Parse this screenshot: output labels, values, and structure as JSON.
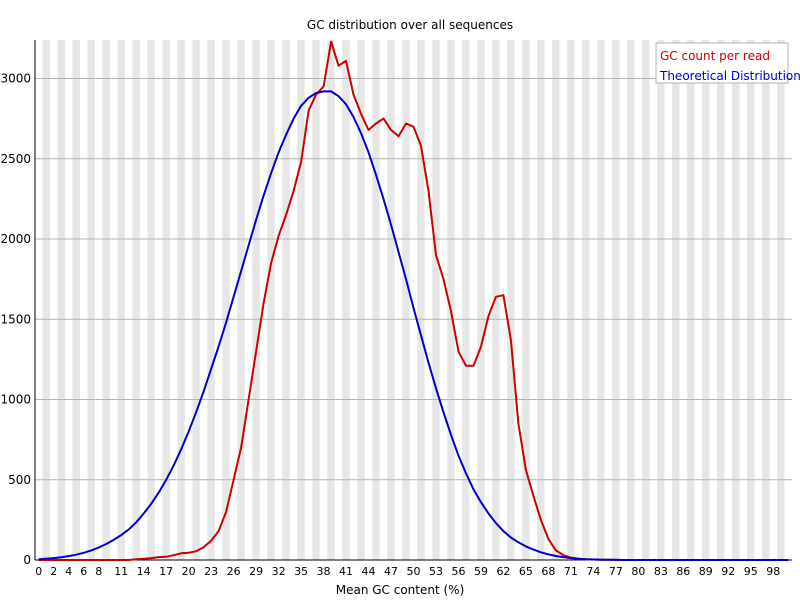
{
  "chart_data": {
    "type": "line",
    "title": "GC distribution over all sequences",
    "xlabel": "Mean GC content (%)",
    "ylabel": "",
    "x_ticks": [
      0,
      2,
      4,
      6,
      8,
      11,
      14,
      17,
      20,
      23,
      26,
      29,
      32,
      35,
      38,
      41,
      44,
      47,
      50,
      53,
      56,
      59,
      62,
      65,
      68,
      71,
      74,
      77,
      80,
      83,
      86,
      89,
      92,
      95,
      98
    ],
    "y_ticks": [
      0,
      500,
      1000,
      1500,
      2000,
      2500,
      3000
    ],
    "xlim": [
      0,
      101
    ],
    "ylim": [
      0,
      3240
    ],
    "grid": "alternating vertical bands, horizontal gridlines",
    "legend": {
      "placement": "top-right",
      "entries": [
        {
          "label": "GC count per read",
          "color": "#cc0000"
        },
        {
          "label": "Theoretical Distribution",
          "color": "#0000cc"
        }
      ]
    },
    "series": [
      {
        "name": "GC count per read",
        "color": "#cc0000",
        "x": [
          0,
          1,
          2,
          3,
          4,
          5,
          6,
          7,
          8,
          9,
          10,
          11,
          12,
          13,
          14,
          15,
          16,
          17,
          18,
          19,
          20,
          21,
          22,
          23,
          24,
          25,
          26,
          27,
          28,
          29,
          30,
          31,
          32,
          33,
          34,
          35,
          36,
          37,
          38,
          39,
          40,
          41,
          42,
          43,
          44,
          45,
          46,
          47,
          48,
          49,
          50,
          51,
          52,
          53,
          54,
          55,
          56,
          57,
          58,
          59,
          60,
          61,
          62,
          63,
          64,
          65,
          66,
          67,
          68,
          69,
          70,
          71,
          72,
          73,
          74,
          75,
          76,
          77,
          78,
          79,
          80,
          81,
          82,
          83,
          84,
          85,
          86,
          87,
          88,
          89,
          90,
          91,
          92,
          93,
          94,
          95,
          96,
          97,
          98,
          99,
          100
        ],
        "y": [
          0,
          0,
          0,
          0,
          0,
          0,
          0,
          0,
          0,
          0,
          0,
          0,
          0,
          5,
          8,
          12,
          18,
          20,
          30,
          42,
          45,
          55,
          80,
          120,
          180,
          300,
          500,
          700,
          1000,
          1300,
          1600,
          1850,
          2020,
          2150,
          2300,
          2480,
          2800,
          2900,
          2950,
          3230,
          3080,
          3110,
          2900,
          2780,
          2680,
          2720,
          2750,
          2680,
          2640,
          2720,
          2700,
          2580,
          2300,
          1900,
          1750,
          1550,
          1300,
          1210,
          1210,
          1330,
          1520,
          1640,
          1650,
          1370,
          850,
          560,
          400,
          250,
          130,
          60,
          30,
          15,
          8,
          5,
          3,
          2,
          1,
          0,
          0,
          0,
          0,
          0,
          0,
          0,
          0,
          0,
          0,
          0,
          0,
          0,
          0,
          0,
          0,
          0,
          0,
          0,
          0,
          0,
          0,
          0,
          0
        ]
      },
      {
        "name": "Theoretical Distribution",
        "color": "#0000cc",
        "x": [
          0,
          1,
          2,
          3,
          4,
          5,
          6,
          7,
          8,
          9,
          10,
          11,
          12,
          13,
          14,
          15,
          16,
          17,
          18,
          19,
          20,
          21,
          22,
          23,
          24,
          25,
          26,
          27,
          28,
          29,
          30,
          31,
          32,
          33,
          34,
          35,
          36,
          37,
          38,
          39,
          40,
          41,
          42,
          43,
          44,
          45,
          46,
          47,
          48,
          49,
          50,
          51,
          52,
          53,
          54,
          55,
          56,
          57,
          58,
          59,
          60,
          61,
          62,
          63,
          64,
          65,
          66,
          67,
          68,
          69,
          70,
          71,
          72,
          73,
          74,
          75,
          76,
          77,
          78,
          79,
          80,
          81,
          82,
          83,
          84,
          85,
          86,
          87,
          88,
          89,
          90,
          91,
          92,
          93,
          94,
          95,
          96,
          97,
          98,
          99,
          100
        ],
        "y": [
          5,
          8,
          12,
          17,
          24,
          33,
          45,
          60,
          78,
          100,
          125,
          155,
          190,
          235,
          290,
          350,
          420,
          500,
          590,
          690,
          800,
          920,
          1050,
          1190,
          1330,
          1480,
          1640,
          1800,
          1960,
          2120,
          2270,
          2410,
          2540,
          2650,
          2750,
          2830,
          2880,
          2910,
          2920,
          2920,
          2890,
          2840,
          2760,
          2660,
          2540,
          2400,
          2250,
          2090,
          1920,
          1750,
          1570,
          1400,
          1230,
          1070,
          920,
          780,
          650,
          540,
          440,
          360,
          290,
          230,
          180,
          140,
          110,
          85,
          65,
          48,
          35,
          25,
          18,
          12,
          8,
          5,
          3,
          2,
          1,
          1,
          0,
          0,
          0,
          0,
          0,
          0,
          0,
          0,
          0,
          0,
          0,
          0,
          0,
          0,
          0,
          0,
          0,
          0,
          0,
          0,
          0,
          0,
          0
        ]
      }
    ]
  }
}
